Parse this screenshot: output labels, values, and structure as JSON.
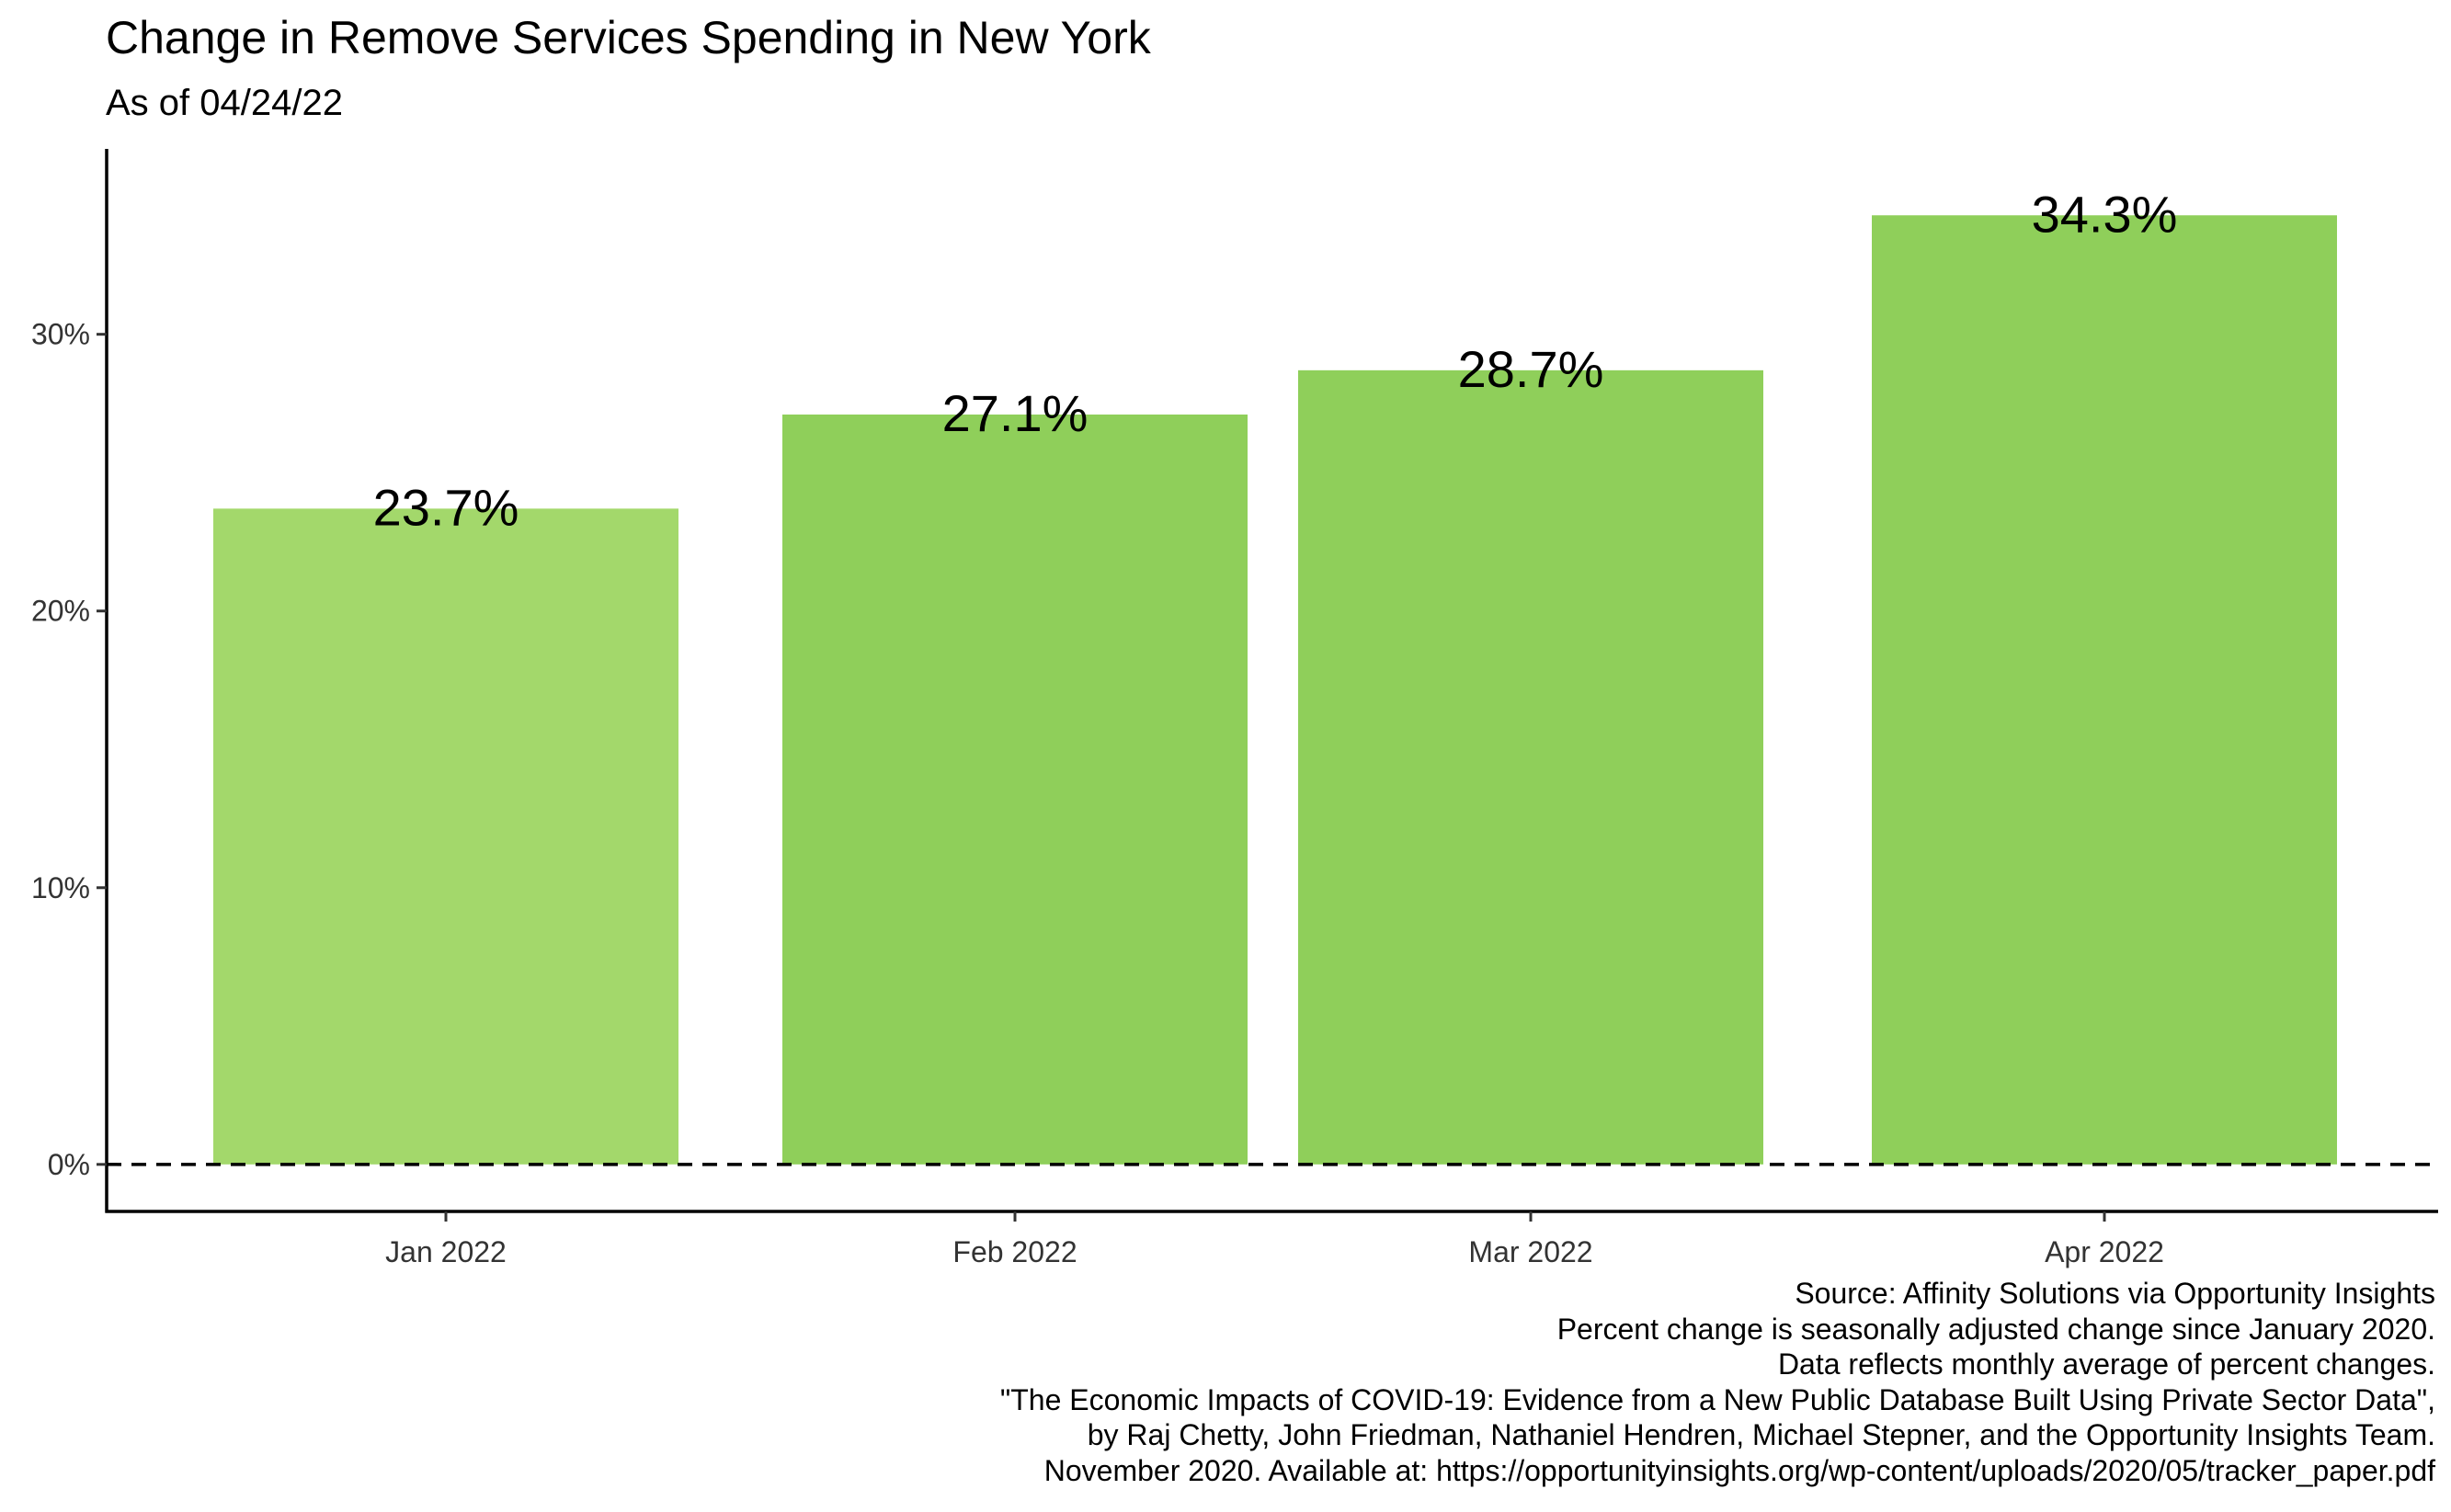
{
  "chart_data": {
    "type": "bar",
    "title": "Change in Remove Services Spending in New York",
    "subtitle": "As of 04/24/22",
    "categories": [
      "Jan 2022",
      "Feb 2022",
      "Mar 2022",
      "Apr 2022"
    ],
    "values": [
      23.7,
      27.1,
      28.7,
      34.3
    ],
    "data_labels": [
      "23.7%",
      "27.1%",
      "28.7%",
      "34.3%"
    ],
    "bar_colors": [
      "#a3d86b",
      "#8fcf5a",
      "#8fcf5a",
      "#8fcf5a"
    ],
    "y_ticks": [
      0,
      10,
      20,
      30
    ],
    "y_tick_labels": [
      "0%",
      "10%",
      "20%",
      "30%"
    ],
    "ylim": [
      -1.7,
      36.7
    ],
    "reference_line": {
      "value": 0,
      "style": "dashed"
    },
    "grid": false,
    "caption": [
      "Source: Affinity Solutions via Opportunity Insights",
      "Percent change is seasonally adjusted change since January 2020.",
      "Data reflects monthly average of percent changes.",
      "\"The Economic Impacts of COVID-19: Evidence from a New Public Database Built Using Private Sector Data\",",
      "by Raj Chetty, John Friedman, Nathaniel Hendren, Michael Stepner, and the Opportunity Insights Team.",
      "November 2020. Available at: https://opportunityinsights.org/wp-content/uploads/2020/05/tracker_paper.pdf"
    ]
  }
}
